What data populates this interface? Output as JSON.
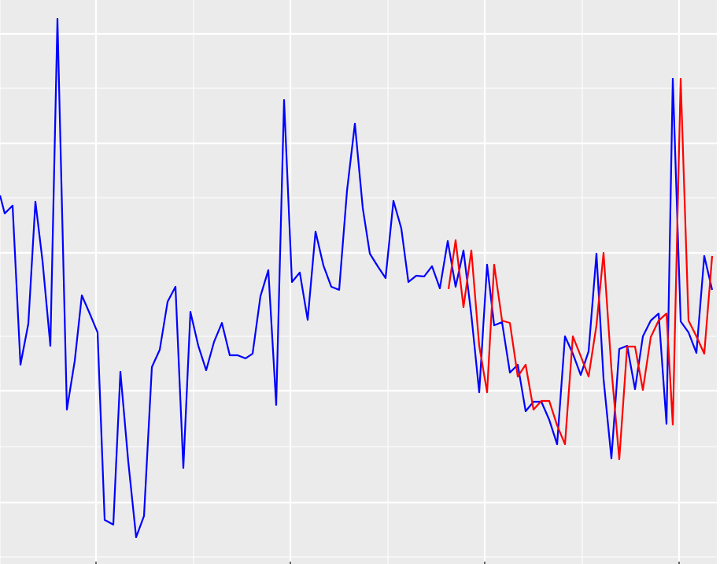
{
  "chart_data": {
    "type": "line",
    "title": "",
    "xlabel": "",
    "ylabel": "",
    "panel_color": "#ebebeb",
    "grid_color": "#ffffff",
    "grid": true,
    "xlim": [
      0,
      911
    ],
    "ylim": [
      0,
      716
    ],
    "x_major_ticks": [
      122,
      369,
      616,
      863
    ],
    "x_minor_ticks": [
      0,
      246,
      493,
      740
    ],
    "y_major_ticks": [
      78,
      220,
      395,
      534,
      673
    ],
    "y_minor_ticks": [
      9,
      149,
      289,
      465,
      604
    ],
    "series": [
      {
        "color": "#0000ff",
        "points": [
          [
            0,
            468
          ],
          [
            6,
            445
          ],
          [
            16,
            455
          ],
          [
            26,
            253
          ],
          [
            36,
            305
          ],
          [
            45,
            460
          ],
          [
            54,
            385
          ],
          [
            64,
            277
          ],
          [
            73,
            692
          ],
          [
            85,
            196
          ],
          [
            95,
            258
          ],
          [
            104,
            341
          ],
          [
            114,
            318
          ],
          [
            124,
            294
          ],
          [
            133,
            56
          ],
          [
            144,
            50
          ],
          [
            153,
            244
          ],
          [
            163,
            130
          ],
          [
            173,
            34
          ],
          [
            183,
            61
          ],
          [
            193,
            250
          ],
          [
            203,
            272
          ],
          [
            213,
            333
          ],
          [
            223,
            352
          ],
          [
            233,
            122
          ],
          [
            242,
            320
          ],
          [
            252,
            277
          ],
          [
            262,
            246
          ],
          [
            272,
            282
          ],
          [
            282,
            306
          ],
          [
            292,
            265
          ],
          [
            302,
            265
          ],
          [
            312,
            261
          ],
          [
            321,
            267
          ],
          [
            331,
            340
          ],
          [
            341,
            373
          ],
          [
            351,
            202
          ],
          [
            361,
            589
          ],
          [
            371,
            358
          ],
          [
            381,
            370
          ],
          [
            391,
            310
          ],
          [
            401,
            422
          ],
          [
            411,
            379
          ],
          [
            421,
            352
          ],
          [
            431,
            348
          ],
          [
            441,
            474
          ],
          [
            451,
            559
          ],
          [
            461,
            452
          ],
          [
            470,
            394
          ],
          [
            480,
            378
          ],
          [
            490,
            363
          ],
          [
            500,
            461
          ],
          [
            510,
            426
          ],
          [
            519,
            358
          ],
          [
            529,
            366
          ],
          [
            539,
            365
          ],
          [
            549,
            378
          ],
          [
            559,
            350
          ],
          [
            569,
            410
          ],
          [
            579,
            352
          ],
          [
            589,
            398
          ],
          [
            599,
            316
          ],
          [
            609,
            218
          ],
          [
            619,
            380
          ],
          [
            628,
            303
          ],
          [
            638,
            307
          ],
          [
            648,
            243
          ],
          [
            658,
            253
          ],
          [
            668,
            194
          ],
          [
            678,
            206
          ],
          [
            688,
            206
          ],
          [
            698,
            183
          ],
          [
            708,
            152
          ],
          [
            718,
            289
          ],
          [
            728,
            267
          ],
          [
            738,
            240
          ],
          [
            748,
            270
          ],
          [
            758,
            394
          ],
          [
            767,
            235
          ],
          [
            777,
            134
          ],
          [
            787,
            273
          ],
          [
            797,
            277
          ],
          [
            807,
            222
          ],
          [
            817,
            289
          ],
          [
            827,
            309
          ],
          [
            837,
            318
          ],
          [
            847,
            178
          ],
          [
            855,
            616
          ],
          [
            865,
            308
          ],
          [
            875,
            294
          ],
          [
            885,
            268
          ],
          [
            895,
            391
          ],
          [
            905,
            348
          ]
        ]
      },
      {
        "color": "#ff0000",
        "points": [
          [
            570,
            349
          ],
          [
            579,
            411
          ],
          [
            589,
            326
          ],
          [
            599,
            398
          ],
          [
            609,
            277
          ],
          [
            619,
            218
          ],
          [
            628,
            380
          ],
          [
            638,
            309
          ],
          [
            648,
            306
          ],
          [
            658,
            238
          ],
          [
            668,
            253
          ],
          [
            678,
            196
          ],
          [
            688,
            207
          ],
          [
            698,
            207
          ],
          [
            708,
            176
          ],
          [
            718,
            152
          ],
          [
            728,
            289
          ],
          [
            738,
            264
          ],
          [
            748,
            238
          ],
          [
            758,
            303
          ],
          [
            767,
            395
          ],
          [
            777,
            248
          ],
          [
            787,
            133
          ],
          [
            797,
            276
          ],
          [
            807,
            276
          ],
          [
            817,
            221
          ],
          [
            827,
            288
          ],
          [
            837,
            309
          ],
          [
            847,
            318
          ],
          [
            855,
            177
          ],
          [
            865,
            616
          ],
          [
            875,
            309
          ],
          [
            885,
            289
          ],
          [
            895,
            267
          ],
          [
            905,
            391
          ]
        ]
      }
    ]
  }
}
